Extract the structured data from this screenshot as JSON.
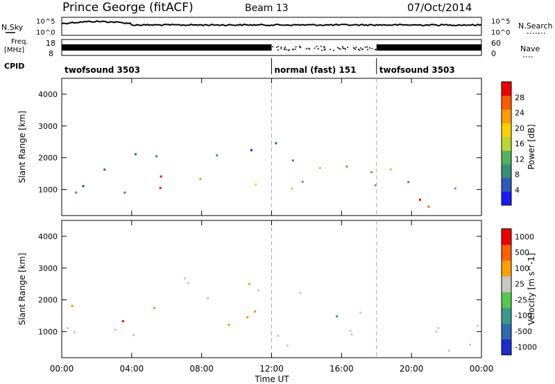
{
  "header": {
    "station": "Prince George (fitACF)",
    "beam": "Beam 13",
    "date": "07/Oct/2014"
  },
  "top_panels": {
    "nsky_label": "N.Sky",
    "nsky_ticks": [
      "10^5",
      "10^0"
    ],
    "nsearch_label": "N.Search",
    "nsearch_ticks": [
      "10^5",
      "10^0"
    ],
    "freq_label_1": "Freq.",
    "freq_label_2": "[MHz]",
    "freq_ticks": [
      "18",
      "8"
    ],
    "nave_label": "Nave",
    "nave_ticks": [
      "60",
      "0"
    ],
    "cpid_label": "CPID",
    "cpid_segments": [
      {
        "label": "twofsound 3503",
        "start_hour": 0,
        "end_hour": 12
      },
      {
        "label": "normal (fast) 151",
        "start_hour": 12,
        "end_hour": 18
      },
      {
        "label": "twofsound 3503",
        "start_hour": 18,
        "end_hour": 24
      }
    ]
  },
  "chart_data": [
    {
      "type": "heatmap",
      "quantity": "power",
      "ylabel": "Slant Range [km]",
      "ylim": [
        180,
        4500
      ],
      "yticks": [
        1000,
        2000,
        3000,
        4000
      ],
      "xlim": [
        0,
        24
      ],
      "colorbar_label": "Power [dB]",
      "colorbar_ticks": [
        4,
        8,
        12,
        16,
        20,
        24,
        28
      ],
      "colorbar_range": [
        0,
        32
      ],
      "colorbar_colors": [
        "#1a1aff",
        "#2f5ab8",
        "#3a8f7a",
        "#55b060",
        "#b8d830",
        "#ffd000",
        "#ff9a00",
        "#ff5a00",
        "#ee0000"
      ],
      "echo_regions": [
        {
          "name": "early-ground-scatter",
          "x": [
            0,
            4.2
          ],
          "y": [
            800,
            2100
          ],
          "value": 10
        },
        {
          "name": "f-region-arc",
          "x": [
            4,
            14
          ],
          "y": [
            1900,
            2800
          ],
          "value": 6
        },
        {
          "name": "main-band",
          "x": [
            5,
            12.5
          ],
          "y": [
            1050,
            1800
          ],
          "value": 27
        },
        {
          "name": "late-band",
          "x": [
            12,
            24
          ],
          "y": [
            650,
            1800
          ],
          "value": 14
        },
        {
          "name": "lower-band",
          "x": [
            18,
            24
          ],
          "y": [
            300,
            800
          ],
          "value": 28
        }
      ]
    },
    {
      "type": "heatmap",
      "quantity": "velocity",
      "ylabel": "Slant Range [km]",
      "ylim": [
        180,
        4500
      ],
      "yticks": [
        1000,
        2000,
        3000,
        4000
      ],
      "xlim": [
        0,
        24
      ],
      "colorbar_label": "Velocity [m s^-1]",
      "colorbar_ticks": [
        "1000",
        "500",
        "100",
        "25",
        "-25",
        "-100",
        "-500",
        "-1000"
      ],
      "colorbar_colors": [
        "#1a2ccf",
        "#2f6bb0",
        "#3a9a8a",
        "#55c850",
        "#c8c8c0",
        "#ffa000",
        "#ff6000",
        "#ee0000"
      ],
      "echo_regions": [
        {
          "name": "early-ground-scatter",
          "x": [
            0,
            4.2
          ],
          "y": [
            800,
            1800
          ],
          "value": 0
        },
        {
          "name": "early-ionospheric",
          "x": [
            0,
            4
          ],
          "y": [
            1000,
            2000
          ],
          "value": -300
        },
        {
          "name": "f-region-arc",
          "x": [
            4,
            14
          ],
          "y": [
            1900,
            2800
          ],
          "value": 0
        },
        {
          "name": "main-band",
          "x": [
            5,
            12.5
          ],
          "y": [
            1050,
            1800
          ],
          "value": -150
        },
        {
          "name": "late-ground-scatter",
          "x": [
            12,
            24
          ],
          "y": [
            400,
            1800
          ],
          "value": 0
        }
      ]
    }
  ],
  "x_axis": {
    "label": "Time UT",
    "ticks": [
      "00:00",
      "04:00",
      "08:00",
      "12:00",
      "16:00",
      "20:00",
      "00:00"
    ],
    "tick_hours": [
      0,
      4,
      8,
      12,
      16,
      20,
      24
    ]
  },
  "colors": {
    "axis": "#000000",
    "background": "#ffffff"
  }
}
